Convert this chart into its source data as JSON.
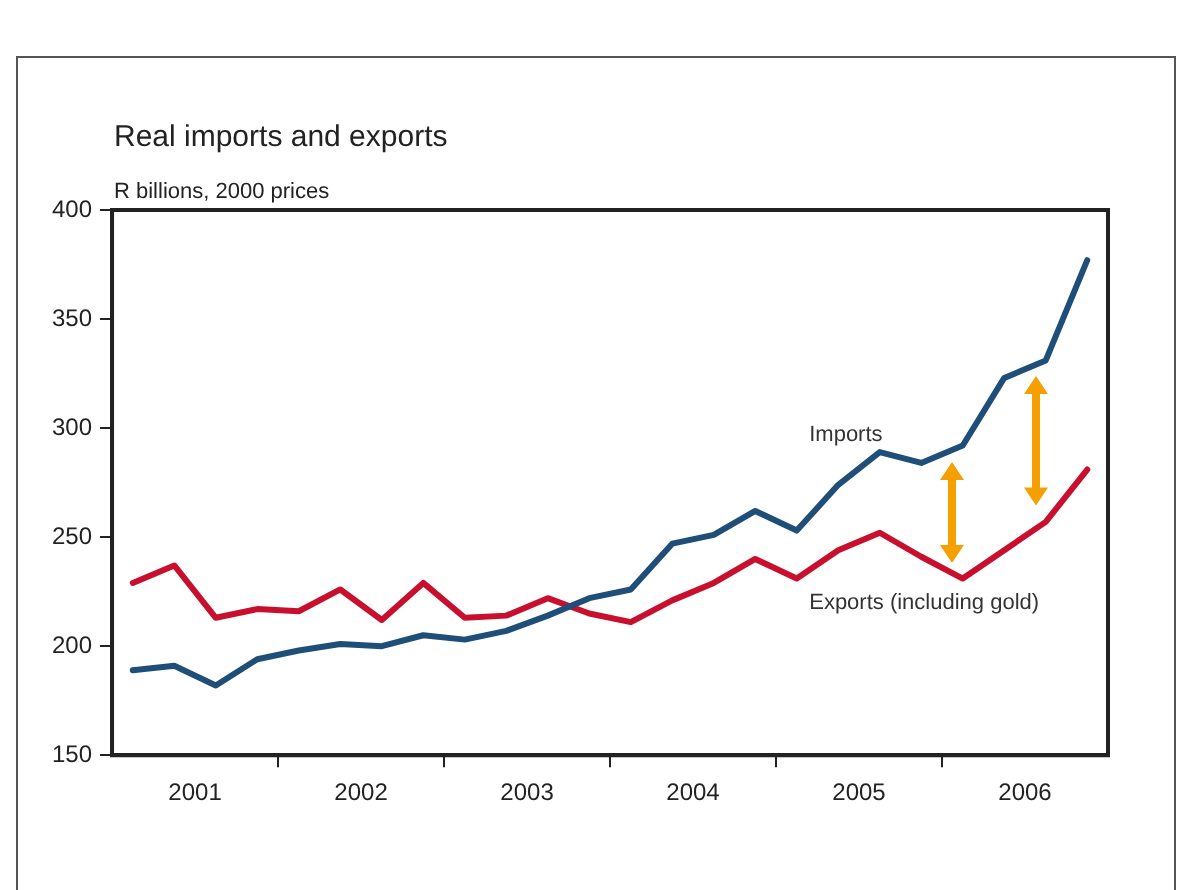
{
  "chart_data": {
    "type": "line",
    "title": "Real imports and exports",
    "ylabel": "R billions, 2000 prices",
    "x": [
      2001.125,
      2001.375,
      2001.625,
      2001.875,
      2002.125,
      2002.375,
      2002.625,
      2002.875,
      2003.125,
      2003.375,
      2003.625,
      2003.875,
      2004.125,
      2004.375,
      2004.625,
      2004.875,
      2005.125,
      2005.375,
      2005.625,
      2005.875,
      2006.125,
      2006.375,
      2006.625,
      2006.875
    ],
    "series": [
      {
        "name": "Imports",
        "color": "#1f4e79",
        "values": [
          189,
          191,
          182,
          194,
          198,
          201,
          200,
          205,
          203,
          207,
          214,
          222,
          226,
          247,
          251,
          262,
          253,
          274,
          289,
          284,
          292,
          323,
          331,
          377
        ]
      },
      {
        "name": "Exports (including gold)",
        "color": "#c8102e",
        "values": [
          229,
          237,
          213,
          217,
          216,
          226,
          212,
          229,
          213,
          214,
          222,
          215,
          211,
          221,
          229,
          240,
          231,
          244,
          252,
          241,
          231,
          244,
          257,
          281
        ]
      }
    ],
    "xlim": [
      2001,
      2007
    ],
    "xticks": [
      {
        "value": 2001.5,
        "label": "2001"
      },
      {
        "value": 2002,
        "label": null
      },
      {
        "value": 2002.5,
        "label": "2002"
      },
      {
        "value": 2003,
        "label": null
      },
      {
        "value": 2003.5,
        "label": "2003"
      },
      {
        "value": 2004,
        "label": null
      },
      {
        "value": 2004.5,
        "label": "2004"
      },
      {
        "value": 2005,
        "label": null
      },
      {
        "value": 2005.5,
        "label": "2005"
      },
      {
        "value": 2006,
        "label": null
      },
      {
        "value": 2006.5,
        "label": "2006"
      }
    ],
    "ylim": [
      150,
      400
    ],
    "yticks": [
      150,
      200,
      250,
      300,
      350,
      400
    ],
    "grid": false,
    "legend": false,
    "marker": "none",
    "line_style": "solid"
  }
}
